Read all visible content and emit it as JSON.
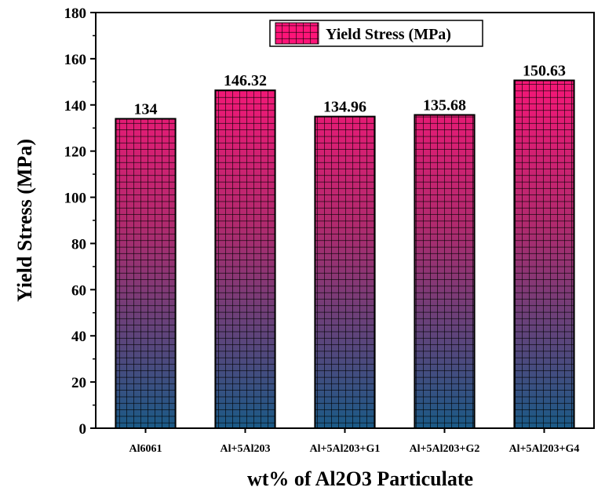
{
  "chart_data": {
    "type": "bar",
    "categories": [
      "Al6061",
      "Al+5Al203",
      "Al+5Al203+G1",
      "Al+5Al203+G2",
      "Al+5Al203+G4"
    ],
    "series": [
      {
        "name": "Yield Stress (MPa)",
        "values": [
          134,
          146.32,
          134.96,
          135.68,
          150.63
        ]
      }
    ],
    "data_labels": [
      "134",
      "146.32",
      "134.96",
      "135.68",
      "150.63"
    ],
    "xlabel": "wt% of Al2O3 Particulate",
    "ylabel": "Yield Stress (MPa)",
    "ylim": [
      0,
      180
    ],
    "yticks": [
      0,
      20,
      40,
      60,
      80,
      100,
      120,
      140,
      160,
      180
    ],
    "grid": false,
    "legend_position": "top-right",
    "colors": {
      "bar_top": "#ff1478",
      "bar_bottom": "#1a5a86",
      "grid_pattern": "#000000"
    }
  }
}
